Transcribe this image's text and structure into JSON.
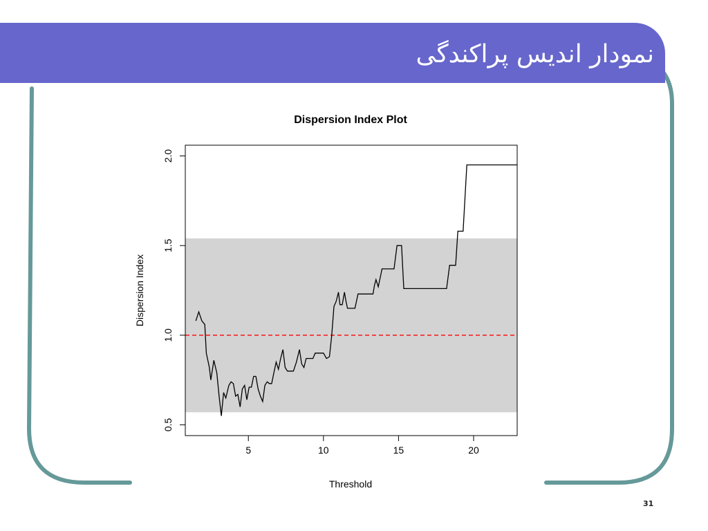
{
  "slide": {
    "title": "نمودار اندیس پراکندگی",
    "page_number": "31",
    "colors": {
      "title_bar": "#6666cc",
      "frame": "#669999"
    }
  },
  "chart_data": {
    "type": "line",
    "title": "Dispersion Index Plot",
    "xlabel": "Threshold",
    "ylabel": "Dispersion Index",
    "xlim": [
      0.8,
      22.9
    ],
    "ylim": [
      0.44,
      2.06
    ],
    "xticks": [
      5,
      10,
      15,
      20
    ],
    "yticks": [
      0.5,
      1.0,
      1.5,
      2.0
    ],
    "ytick_labels": [
      "0.5",
      "1.0",
      "1.5",
      "2.0"
    ],
    "grid": false,
    "confidence_band": {
      "lower": 0.57,
      "upper": 1.54,
      "color": "#d3d3d3"
    },
    "reference_line": {
      "y": 1.0,
      "color": "#ff0000",
      "style": "dashed"
    },
    "series": [
      {
        "color": "#000000",
        "points": [
          [
            1.5,
            1.08
          ],
          [
            1.7,
            1.13
          ],
          [
            1.9,
            1.08
          ],
          [
            2.1,
            1.06
          ],
          [
            2.2,
            0.9
          ],
          [
            2.4,
            0.82
          ],
          [
            2.5,
            0.75
          ],
          [
            2.7,
            0.86
          ],
          [
            2.9,
            0.79
          ],
          [
            3.05,
            0.66
          ],
          [
            3.2,
            0.55
          ],
          [
            3.35,
            0.68
          ],
          [
            3.5,
            0.65
          ],
          [
            3.7,
            0.72
          ],
          [
            3.85,
            0.74
          ],
          [
            4.0,
            0.73
          ],
          [
            4.15,
            0.66
          ],
          [
            4.3,
            0.67
          ],
          [
            4.45,
            0.6
          ],
          [
            4.6,
            0.7
          ],
          [
            4.75,
            0.72
          ],
          [
            4.9,
            0.64
          ],
          [
            5.05,
            0.71
          ],
          [
            5.2,
            0.71
          ],
          [
            5.35,
            0.77
          ],
          [
            5.5,
            0.77
          ],
          [
            5.65,
            0.7
          ],
          [
            5.8,
            0.66
          ],
          [
            5.95,
            0.63
          ],
          [
            6.1,
            0.72
          ],
          [
            6.25,
            0.74
          ],
          [
            6.4,
            0.73
          ],
          [
            6.55,
            0.73
          ],
          [
            6.7,
            0.79
          ],
          [
            6.85,
            0.85
          ],
          [
            7.0,
            0.81
          ],
          [
            7.15,
            0.87
          ],
          [
            7.3,
            0.92
          ],
          [
            7.45,
            0.82
          ],
          [
            7.6,
            0.8
          ],
          [
            8.0,
            0.8
          ],
          [
            8.2,
            0.85
          ],
          [
            8.4,
            0.92
          ],
          [
            8.55,
            0.84
          ],
          [
            8.7,
            0.82
          ],
          [
            8.85,
            0.87
          ],
          [
            9.0,
            0.87
          ],
          [
            9.3,
            0.87
          ],
          [
            9.45,
            0.9
          ],
          [
            10.0,
            0.9
          ],
          [
            10.2,
            0.87
          ],
          [
            10.4,
            0.88
          ],
          [
            10.55,
            1.0
          ],
          [
            10.7,
            1.16
          ],
          [
            10.85,
            1.19
          ],
          [
            11.0,
            1.24
          ],
          [
            11.1,
            1.17
          ],
          [
            11.25,
            1.17
          ],
          [
            11.4,
            1.24
          ],
          [
            11.5,
            1.19
          ],
          [
            11.6,
            1.15
          ],
          [
            12.1,
            1.15
          ],
          [
            12.3,
            1.23
          ],
          [
            13.3,
            1.23
          ],
          [
            13.4,
            1.28
          ],
          [
            13.5,
            1.31
          ],
          [
            13.65,
            1.27
          ],
          [
            13.8,
            1.33
          ],
          [
            13.9,
            1.37
          ],
          [
            14.7,
            1.37
          ],
          [
            14.9,
            1.5
          ],
          [
            15.2,
            1.5
          ],
          [
            15.35,
            1.26
          ],
          [
            18.2,
            1.26
          ],
          [
            18.4,
            1.39
          ],
          [
            18.8,
            1.39
          ],
          [
            18.95,
            1.58
          ],
          [
            19.3,
            1.58
          ],
          [
            19.55,
            1.95
          ],
          [
            22.9,
            1.95
          ]
        ]
      }
    ]
  }
}
